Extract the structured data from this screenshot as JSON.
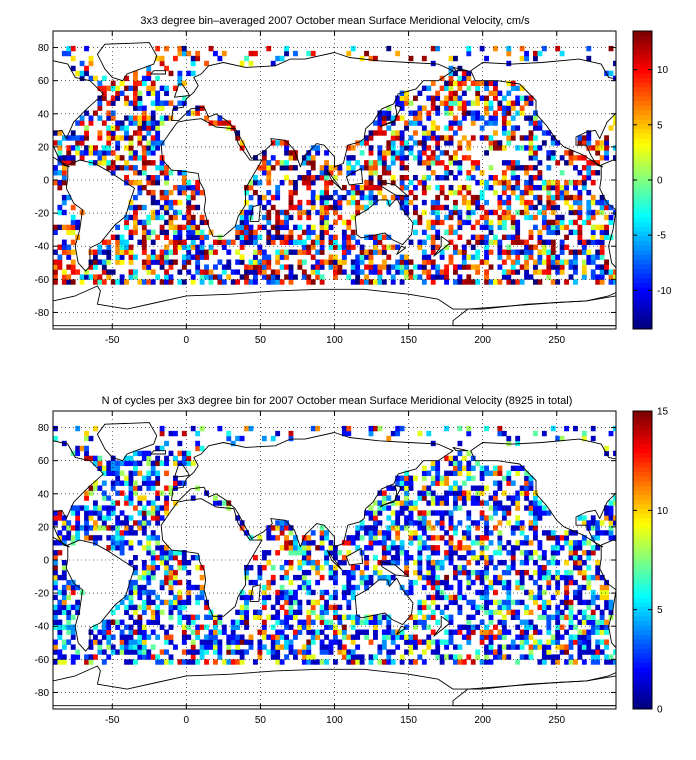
{
  "chart_data": [
    {
      "type": "heatmap",
      "title": "3x3 degree bin–averaged 2007 October mean Surface Meridional Velocity, cm/s",
      "xlabel": "",
      "ylabel": "",
      "xlim": [
        -90,
        290
      ],
      "ylim": [
        -90,
        90
      ],
      "xticks": [
        -50,
        0,
        50,
        100,
        150,
        200,
        250
      ],
      "yticks": [
        -80,
        -60,
        -40,
        -20,
        0,
        20,
        40,
        60,
        80
      ],
      "grid": "dotted",
      "bin_size_deg": 3,
      "colormap": "jet",
      "clim": [
        -13.5,
        13.5
      ],
      "colorbar_ticks": [
        -10,
        -5,
        0,
        5,
        10
      ],
      "pattern": "diverging",
      "seed": 7
    },
    {
      "type": "heatmap",
      "title": "N of cycles per 3x3 degree bin for 2007 October mean Surface Meridional Velocity (8925 in total)",
      "xlabel": "",
      "ylabel": "",
      "xlim": [
        -90,
        290
      ],
      "ylim": [
        -90,
        90
      ],
      "xticks": [
        -50,
        0,
        50,
        100,
        150,
        200,
        250
      ],
      "yticks": [
        -80,
        -60,
        -40,
        -20,
        0,
        20,
        40,
        60,
        80
      ],
      "grid": "dotted",
      "bin_size_deg": 3,
      "colormap": "jet",
      "clim": [
        0,
        15
      ],
      "colorbar_ticks": [
        0,
        5,
        10,
        15
      ],
      "pattern": "counts",
      "seed": 31
    }
  ]
}
